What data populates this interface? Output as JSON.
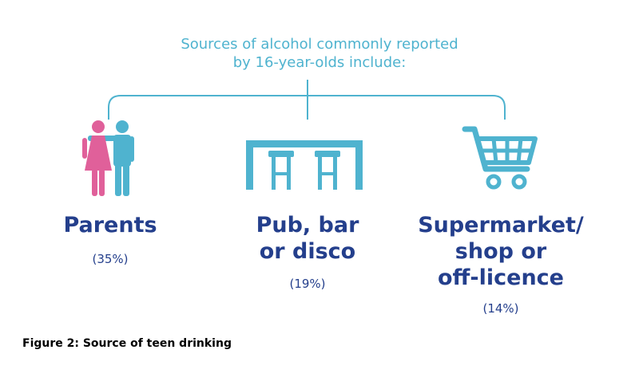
{
  "intro": {
    "line1": "Sources of alcohol commonly reported",
    "line2": "by 16-year-olds include:"
  },
  "sources": [
    {
      "name_line1": "Parents",
      "name_line2": "",
      "name_line3": "",
      "percent": "(35%)",
      "icon": "parents-icon"
    },
    {
      "name_line1": "Pub, bar",
      "name_line2": "or disco",
      "name_line3": "",
      "percent": "(19%)",
      "icon": "bar-counter-icon"
    },
    {
      "name_line1": "Supermarket/",
      "name_line2": "shop or",
      "name_line3": "off-licence",
      "percent": "(14%)",
      "icon": "shopping-cart-icon"
    }
  ],
  "caption": "Figure 2: Source of teen drinking",
  "colors": {
    "accent": "#4fb3cf",
    "heading": "#243f8c",
    "pink": "#e0609a"
  }
}
